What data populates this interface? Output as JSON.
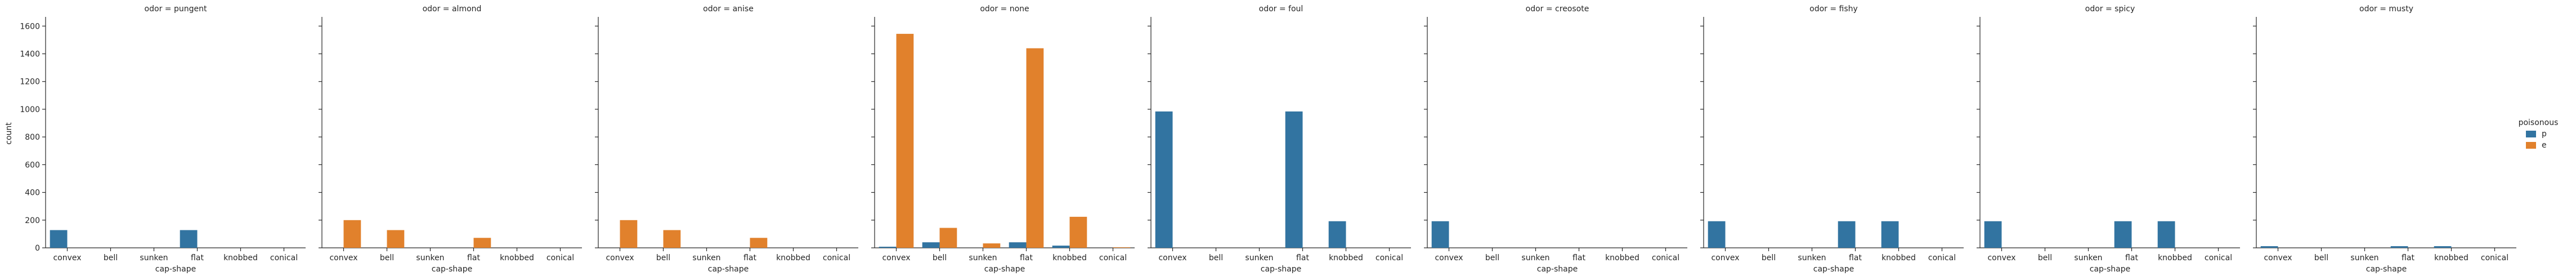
{
  "chart_data": {
    "type": "bar",
    "xlabel": "cap-shape",
    "ylabel": "count",
    "ylim": [
      0,
      1650
    ],
    "yticks": [
      0,
      200,
      400,
      600,
      800,
      1000,
      1200,
      1400,
      1600
    ],
    "categories": [
      "convex",
      "bell",
      "sunken",
      "flat",
      "knobbed",
      "conical"
    ],
    "legend": {
      "title": "poisonous",
      "position": "right",
      "entries": [
        {
          "label": "p",
          "color": "#3274a1"
        },
        {
          "label": "e",
          "color": "#e1812c"
        }
      ]
    },
    "facets": [
      {
        "title": "odor = pungent",
        "series": [
          {
            "name": "p",
            "values": [
              128,
              0,
              0,
              128,
              0,
              0
            ]
          },
          {
            "name": "e",
            "values": [
              0,
              0,
              0,
              0,
              0,
              0
            ]
          }
        ]
      },
      {
        "title": "odor = almond",
        "series": [
          {
            "name": "p",
            "values": [
              0,
              0,
              0,
              0,
              0,
              0
            ]
          },
          {
            "name": "e",
            "values": [
              200,
              128,
              0,
              72,
              0,
              0
            ]
          }
        ]
      },
      {
        "title": "odor = anise",
        "series": [
          {
            "name": "p",
            "values": [
              0,
              0,
              0,
              0,
              0,
              0
            ]
          },
          {
            "name": "e",
            "values": [
              200,
              128,
              0,
              72,
              0,
              0
            ]
          }
        ]
      },
      {
        "title": "odor = none",
        "series": [
          {
            "name": "p",
            "values": [
              8,
              40,
              0,
              40,
              16,
              0
            ]
          },
          {
            "name": "e",
            "values": [
              1544,
              144,
              32,
              1440,
              224,
              4
            ]
          }
        ]
      },
      {
        "title": "odor = foul",
        "series": [
          {
            "name": "p",
            "values": [
              984,
              0,
              0,
              984,
              192,
              0
            ]
          },
          {
            "name": "e",
            "values": [
              0,
              0,
              0,
              0,
              0,
              0
            ]
          }
        ]
      },
      {
        "title": "odor = creosote",
        "series": [
          {
            "name": "p",
            "values": [
              192,
              0,
              0,
              0,
              0,
              0
            ]
          },
          {
            "name": "e",
            "values": [
              0,
              0,
              0,
              0,
              0,
              0
            ]
          }
        ]
      },
      {
        "title": "odor = fishy",
        "series": [
          {
            "name": "p",
            "values": [
              192,
              0,
              0,
              192,
              192,
              0
            ]
          },
          {
            "name": "e",
            "values": [
              0,
              0,
              0,
              0,
              0,
              0
            ]
          }
        ]
      },
      {
        "title": "odor = spicy",
        "series": [
          {
            "name": "p",
            "values": [
              192,
              0,
              0,
              192,
              192,
              0
            ]
          },
          {
            "name": "e",
            "values": [
              0,
              0,
              0,
              0,
              0,
              0
            ]
          }
        ]
      },
      {
        "title": "odor = musty",
        "series": [
          {
            "name": "p",
            "values": [
              12,
              0,
              0,
              12,
              12,
              0
            ]
          },
          {
            "name": "e",
            "values": [
              0,
              0,
              0,
              0,
              0,
              0
            ]
          }
        ]
      }
    ]
  }
}
